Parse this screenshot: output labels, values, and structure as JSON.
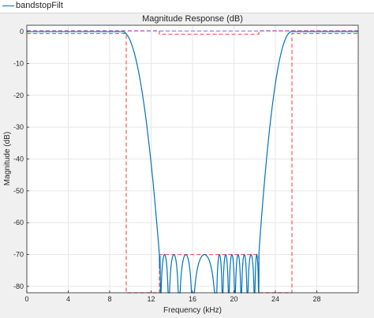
{
  "legend": {
    "label": "bandstopFilt",
    "color": "#0072bd"
  },
  "chart_data": {
    "type": "line",
    "title": "Magnitude Response (dB)",
    "xlabel": "Frequency (kHz)",
    "ylabel": "Magnitude (dB)",
    "xlim": [
      0,
      32
    ],
    "ylim": [
      -82,
      2
    ],
    "grid": true,
    "xticks": [
      0,
      4,
      8,
      12,
      16,
      20,
      24,
      28
    ],
    "yticks": [
      0,
      -10,
      -20,
      -30,
      -40,
      -50,
      -60,
      -70,
      -80
    ],
    "series": [
      {
        "name": "bandstopFilt",
        "color": "#0072bd",
        "style": "solid",
        "passband_ripple_db": 0,
        "stopband_floor_db": -70,
        "lower_band_edge_start_khz": 9.2,
        "lower_band_edge_end_khz": 12.8,
        "upper_band_edge_start_khz": 22.4,
        "upper_band_edge_end_khz": 25.6,
        "stopband_nulls_khz": [
          12.9,
          13.7,
          14.7,
          16.0,
          18.3,
          18.9,
          19.5,
          20.1,
          20.7,
          21.3,
          22.0
        ]
      },
      {
        "color": "#ff5555",
        "style": "dashed",
        "x": [
          0,
          9.6,
          9.6,
          12.8,
          12.8,
          22.4,
          22.4,
          25.6,
          25.6,
          32
        ],
        "y": [
          -0.6,
          -0.6,
          -83,
          -83,
          -70,
          -70,
          -83,
          -83,
          -0.6,
          -0.6
        ]
      },
      {
        "color": "#ff5555",
        "style": "dashed",
        "x": [
          0,
          12.8,
          12.8,
          22.4,
          22.4,
          32
        ],
        "y": [
          0.3,
          0.3,
          -0.8,
          -0.8,
          0.3,
          0.3
        ]
      },
      {
        "color": "#8c8cff",
        "style": "dashed",
        "x": [
          0,
          9.6,
          25.6,
          32
        ],
        "y": [
          0.2,
          0.2,
          0.2,
          0.2
        ]
      }
    ]
  }
}
